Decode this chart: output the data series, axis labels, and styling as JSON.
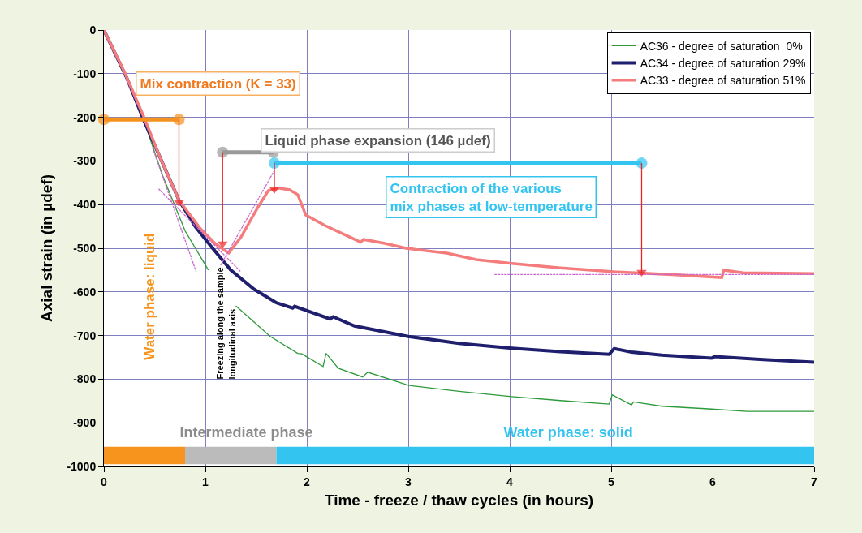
{
  "chart_data": {
    "type": "line",
    "xlabel": "Time - freeze / thaw cycles (in hours)",
    "ylabel": "Axial strain (in µdef)",
    "xlim": [
      0,
      7
    ],
    "xticks": [
      0,
      1,
      2,
      3,
      4,
      5,
      6,
      7
    ],
    "ylim": [
      -1000,
      0
    ],
    "yticks": [
      -1000,
      -900,
      -800,
      -700,
      -600,
      -500,
      -400,
      -300,
      -200,
      -100,
      0
    ],
    "grid": true,
    "legend": "top right",
    "marker": "none",
    "line_style": "solid",
    "series": [
      {
        "name": "AC36 - degree of saturation  0%",
        "color": "#2e9a3a",
        "x": [
          0,
          0.23,
          0.39,
          0.58,
          0.8,
          1.03,
          1.15,
          1.3,
          1.64,
          1.91,
          1.95,
          2.16,
          2.19,
          2.31,
          2.55,
          2.6,
          3.0,
          3.5,
          4.02,
          4.5,
          4.98,
          5.01,
          5.2,
          5.22,
          5.5,
          5.96,
          6.34,
          7.0
        ],
        "values": [
          0,
          -112,
          -205,
          -334,
          -460,
          -550,
          null,
          -632,
          -702,
          -741,
          -742,
          -771,
          -741,
          -775,
          -795,
          -784,
          -814,
          -828,
          -840,
          -849,
          -857,
          -836,
          -859,
          -852,
          -862,
          -868,
          -874,
          -874
        ]
      },
      {
        "name": "AC34 - degree of saturation 29%",
        "color": "#1f1f6e",
        "x": [
          0,
          0.23,
          0.39,
          0.55,
          0.74,
          0.9,
          1.05,
          1.25,
          1.48,
          1.7,
          1.86,
          1.88,
          2.23,
          2.26,
          2.47,
          3.0,
          3.5,
          4.02,
          4.5,
          4.98,
          5.03,
          5.2,
          5.5,
          5.99,
          6.02,
          6.5,
          7.0
        ],
        "values": [
          0,
          -112,
          -205,
          -290,
          -390,
          -450,
          -494,
          -550,
          -594,
          -625,
          -637,
          -633,
          -662,
          -657,
          -678,
          -702,
          -718,
          -729,
          -737,
          -743,
          -730,
          -738,
          -745,
          -752,
          -748,
          -755,
          -761
        ]
      },
      {
        "name": "AC33 - degree of saturation 51%",
        "color": "#f47c7c",
        "x": [
          0,
          0.2,
          0.39,
          0.55,
          0.74,
          0.95,
          1.1,
          1.23,
          1.35,
          1.51,
          1.62,
          1.72,
          1.83,
          1.91,
          1.99,
          2.18,
          2.44,
          2.53,
          2.56,
          2.75,
          2.98,
          3.38,
          3.67,
          4.02,
          4.5,
          5.03,
          5.64,
          6.09,
          6.11,
          6.3,
          7.0
        ],
        "values": [
          0,
          -95,
          -197,
          -290,
          -390,
          -455,
          -490,
          -511,
          -475,
          -409,
          -368,
          -362,
          -366,
          -377,
          -424,
          -448,
          -476,
          -486,
          -480,
          -488,
          -500,
          -511,
          -526,
          -535,
          -545,
          -554,
          -561,
          -567,
          -550,
          -556,
          -558
        ]
      },
      {
        "color": "#cc66cc",
        "line_style": "dashed",
        "x": [
          0.54,
          1.35
        ],
        "values": [
          -364,
          -554
        ]
      },
      {
        "color": "#cc66cc",
        "line_style": "dashed",
        "x": [
          0.48,
          0.91
        ],
        "values": [
          -270,
          -554
        ]
      },
      {
        "color": "#cc66cc",
        "line_style": "dashed",
        "x": [
          1.15,
          1.68
        ],
        "values": [
          -539,
          -322
        ]
      },
      {
        "color": "#cc66cc",
        "line_style": "dashed",
        "x": [
          3.85,
          7.0
        ],
        "values": [
          -560,
          -560
        ]
      },
      {
        "color": "#f5921c",
        "marker": "circle",
        "x": [
          0,
          0.74
        ],
        "values": [
          -205,
          -205
        ]
      },
      {
        "color": "#999999",
        "marker": "circle",
        "x": [
          1.17,
          1.67
        ],
        "values": [
          -280,
          -280
        ]
      },
      {
        "color": "#33c4f0",
        "marker": "circle",
        "x": [
          1.68,
          5.3
        ],
        "values": [
          -305,
          -305
        ]
      },
      {
        "color": "#ee2222",
        "marker": "triangle",
        "x": [
          0.74,
          0.74
        ],
        "values": [
          -205,
          -395
        ]
      },
      {
        "color": "#ee2222",
        "marker": "triangle",
        "x": [
          1.17,
          1.17
        ],
        "values": [
          -280,
          -490
        ]
      },
      {
        "color": "#ee2222",
        "marker": "triangle",
        "x": [
          1.68,
          1.68
        ],
        "values": [
          -305,
          -365
        ]
      },
      {
        "color": "#ee2222",
        "marker": "triangle",
        "x": [
          5.3,
          5.3
        ],
        "values": [
          -305,
          -555
        ]
      },
      {
        "color": "#f7941d",
        "x": [
          0,
          0.8
        ],
        "values": [
          null,
          null
        ],
        "lower": [
          -995,
          -995
        ],
        "upper": [
          -955,
          -955
        ]
      },
      {
        "color": "#bbbbbb",
        "x": [
          0.8,
          1.7
        ],
        "values": [
          null,
          null
        ],
        "lower": [
          -995,
          -995
        ],
        "upper": [
          -955,
          -955
        ]
      },
      {
        "color": "#33c4f0",
        "x": [
          1.7,
          7
        ],
        "values": [
          null,
          null
        ],
        "lower": [
          -995,
          -995
        ],
        "upper": [
          -955,
          -955
        ]
      }
    ],
    "annotations": [
      "Mix contraction (K = 33)",
      "Liquid phase expansion (146 µdef)",
      "Contraction of the various\nmix phases at low-temperature",
      "Freezing along the sample\nlongitudinal axis",
      "Water phase: liquid",
      "Intermediate phase",
      "Water phase: solid"
    ]
  }
}
